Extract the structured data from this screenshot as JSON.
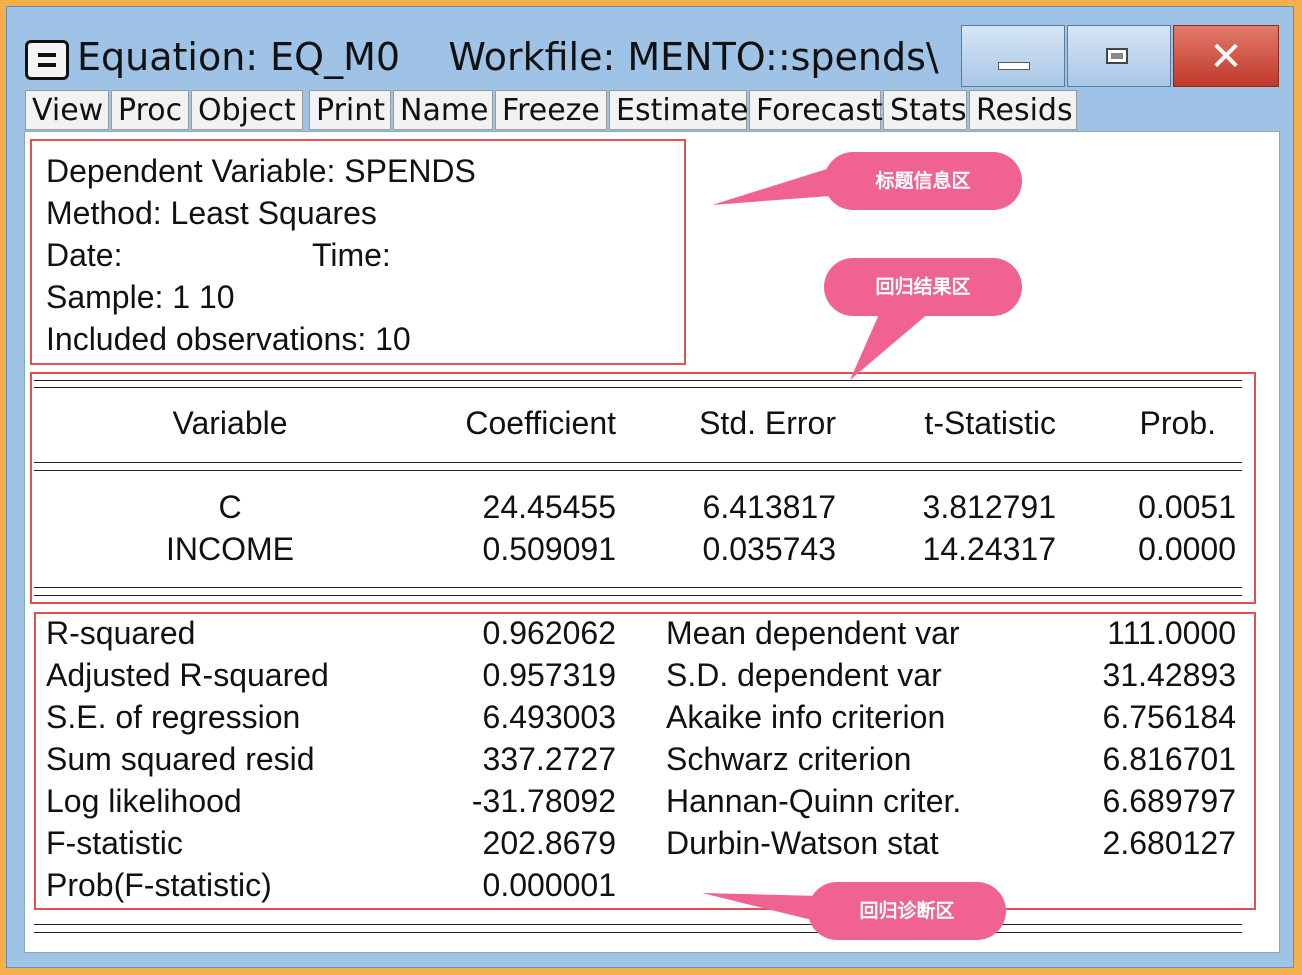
{
  "window": {
    "title": "Equation: EQ_M0    Workfile: MENTO::spends\\",
    "icon": "system-menu-icon",
    "buttons": {
      "minimize": "minimize-icon",
      "maximize": "maximize-icon",
      "close": "✕"
    }
  },
  "toolbar": {
    "items": [
      "View",
      "Proc",
      "Object",
      "Print",
      "Name",
      "Freeze",
      "Estimate",
      "Forecast",
      "Stats",
      "Resids"
    ]
  },
  "header": {
    "dependent": "Dependent Variable: SPENDS",
    "method": "Method: Least Squares",
    "date_label": "Date:",
    "time_label": "Time:",
    "sample": "Sample: 1 10",
    "included": "Included observations: 10"
  },
  "coef_table": {
    "columns": [
      "Variable",
      "Coefficient",
      "Std. Error",
      "t-Statistic",
      "Prob."
    ],
    "rows": [
      [
        "C",
        "24.45455",
        "6.413817",
        "3.812791",
        "0.0051"
      ],
      [
        "INCOME",
        "0.509091",
        "0.035743",
        "14.24317",
        "0.0000"
      ]
    ]
  },
  "diagnostics": {
    "left": [
      [
        "R-squared",
        "0.962062"
      ],
      [
        "Adjusted R-squared",
        "0.957319"
      ],
      [
        "S.E. of regression",
        "6.493003"
      ],
      [
        "Sum squared resid",
        "337.2727"
      ],
      [
        "Log likelihood",
        "-31.78092"
      ],
      [
        "F-statistic",
        "202.8679"
      ],
      [
        "Prob(F-statistic)",
        "0.000001"
      ]
    ],
    "right": [
      [
        "Mean dependent var",
        "111.0000"
      ],
      [
        "S.D. dependent var",
        "31.42893"
      ],
      [
        "Akaike info criterion",
        "6.756184"
      ],
      [
        "Schwarz criterion",
        "6.816701"
      ],
      [
        "Hannan-Quinn criter.",
        "6.689797"
      ],
      [
        "Durbin-Watson stat",
        "2.680127"
      ]
    ]
  },
  "callouts": {
    "header_area": "标题信息区",
    "results_area": "回归结果区",
    "diagnostics_area": "回归诊断区"
  },
  "colors": {
    "callout": "#f06292",
    "box_border": "#e0524f",
    "window_frame": "#9ec3e6",
    "close_button": "#c0392b",
    "outer_border": "#f3b04a"
  }
}
